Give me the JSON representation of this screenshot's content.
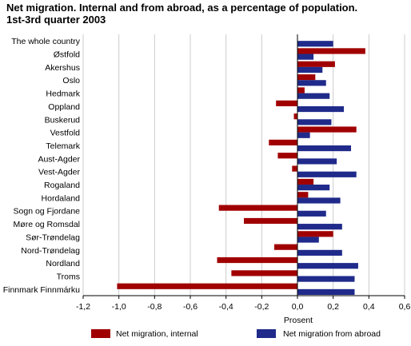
{
  "chart_data": {
    "type": "bar",
    "orientation": "horizontal",
    "title_line1": "Net migration. Internal and from abroad, as a percentage of population.",
    "title_line2": "1st-3rd quarter 2003",
    "xlabel": "Prosent",
    "xlim": [
      -1.2,
      0.6
    ],
    "xticks": [
      -1.2,
      -1.0,
      -0.8,
      -0.6,
      -0.4,
      -0.2,
      0.0,
      0.2,
      0.4,
      0.6
    ],
    "xtick_labels": [
      "-1,2",
      "-1,0",
      "-0,8",
      "-0,6",
      "-0,4",
      "-0,2",
      "0,0",
      "0,2",
      "0,4",
      "0,6"
    ],
    "grid": "vertical",
    "legend_position": "bottom",
    "categories": [
      "The whole country",
      "Østfold",
      "Akershus",
      "Oslo",
      "Hedmark",
      "Oppland",
      "Buskerud",
      "Vestfold",
      "Telemark",
      "Aust-Agder",
      "Vest-Agder",
      "Rogaland",
      "Hordaland",
      "Sogn og Fjordane",
      "Møre og Romsdal",
      "Sør-Trøndelag",
      "Nord-Trøndelag",
      "Nordland",
      "Troms",
      "Finnmark Finnmárku"
    ],
    "series": [
      {
        "name": "Net migration, internal",
        "color": "#a00000",
        "values": [
          0.0,
          0.38,
          0.21,
          0.1,
          0.04,
          -0.12,
          -0.02,
          0.33,
          -0.16,
          -0.11,
          -0.03,
          0.09,
          0.06,
          -0.44,
          -0.3,
          0.2,
          -0.13,
          -0.45,
          -0.37,
          -1.01
        ]
      },
      {
        "name": "Net migration from abroad",
        "color": "#1f2a8a",
        "values": [
          0.2,
          0.09,
          0.14,
          0.16,
          0.18,
          0.26,
          0.19,
          0.07,
          0.3,
          0.22,
          0.33,
          0.18,
          0.24,
          0.16,
          0.25,
          0.12,
          0.25,
          0.34,
          0.32,
          0.32
        ]
      }
    ]
  }
}
